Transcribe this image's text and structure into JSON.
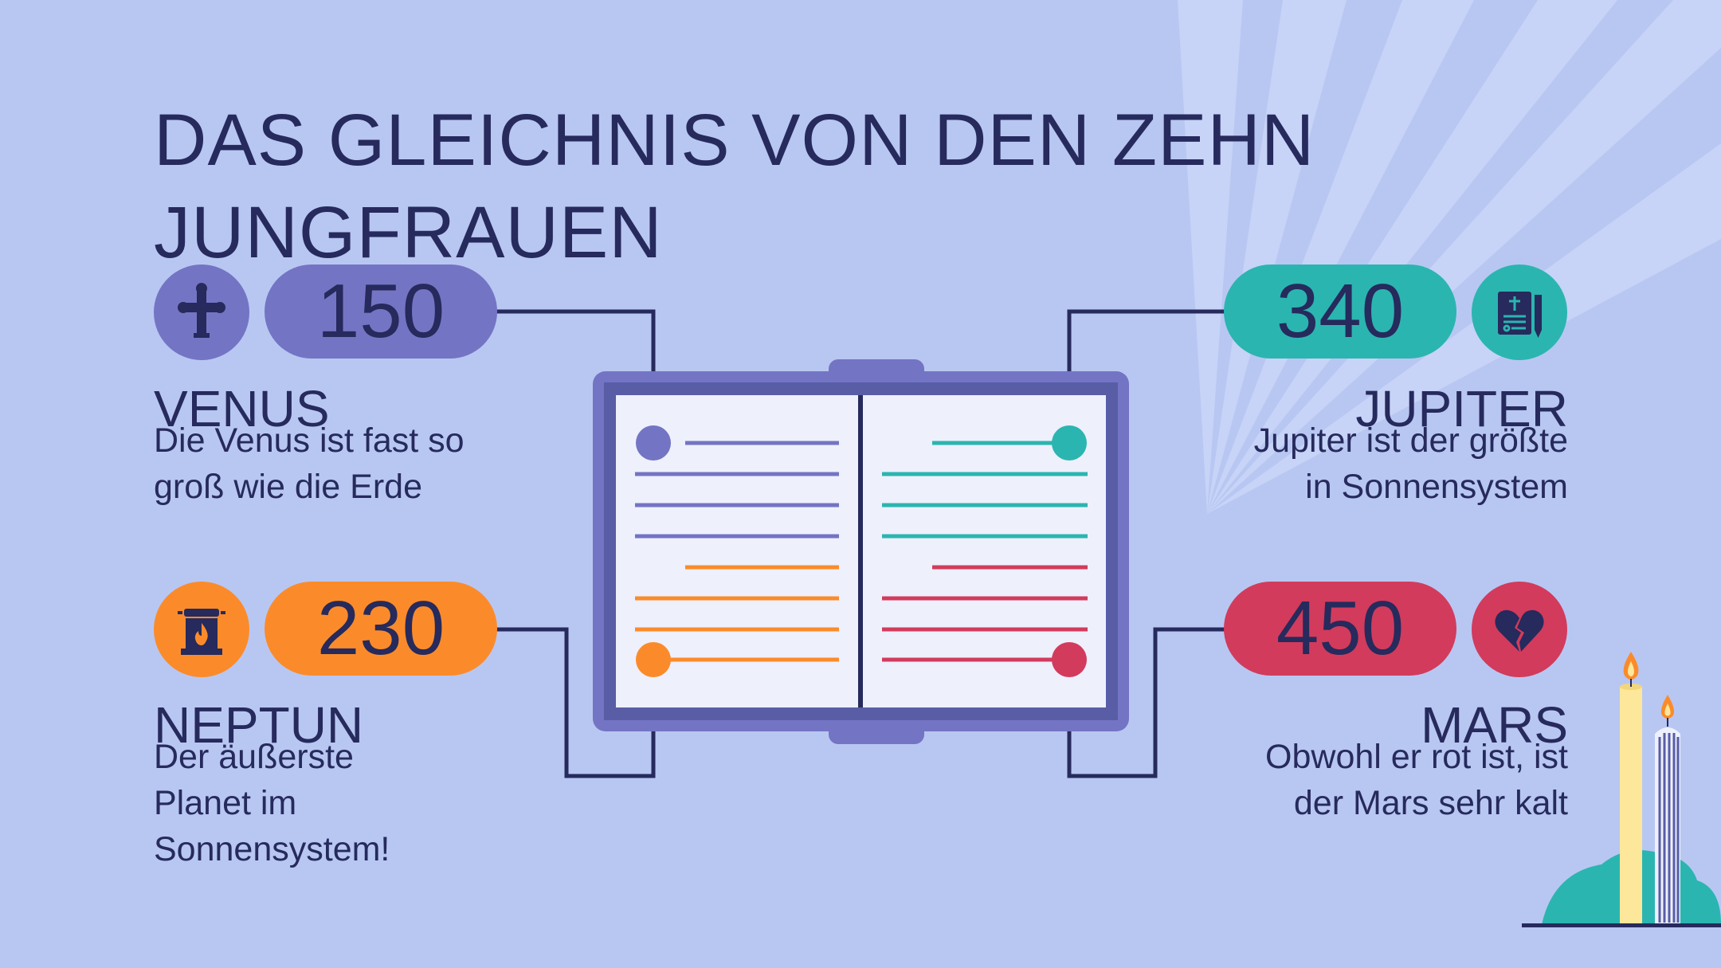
{
  "title": "DAS GLEICHNIS VON DEN ZEHN JUNGFRAUEN",
  "colors": {
    "background": "#b8c7f2",
    "text": "#262a5c",
    "venus": "#7474c4",
    "neptun": "#fb8b2a",
    "jupiter": "#2bb5b0",
    "mars": "#d23b5c",
    "book_cover": "#7474c4",
    "book_page": "#eef0fc"
  },
  "items": [
    {
      "key": "venus",
      "value": "150",
      "name": "VENUS",
      "description": "Die Venus ist fast so groß wie die Erde",
      "icon": "cross-icon"
    },
    {
      "key": "jupiter",
      "value": "340",
      "name": "JUPITER",
      "description": "Jupiter ist der größte in Sonnensystem",
      "icon": "scripture-icon"
    },
    {
      "key": "neptun",
      "value": "230",
      "name": "NEPTUN",
      "description": "Der äußerste Planet im Sonnensystem!",
      "icon": "altar-fire-icon"
    },
    {
      "key": "mars",
      "value": "450",
      "name": "MARS",
      "description": "Obwohl er rot ist, ist der Mars sehr kalt",
      "icon": "broken-heart-icon"
    }
  ]
}
